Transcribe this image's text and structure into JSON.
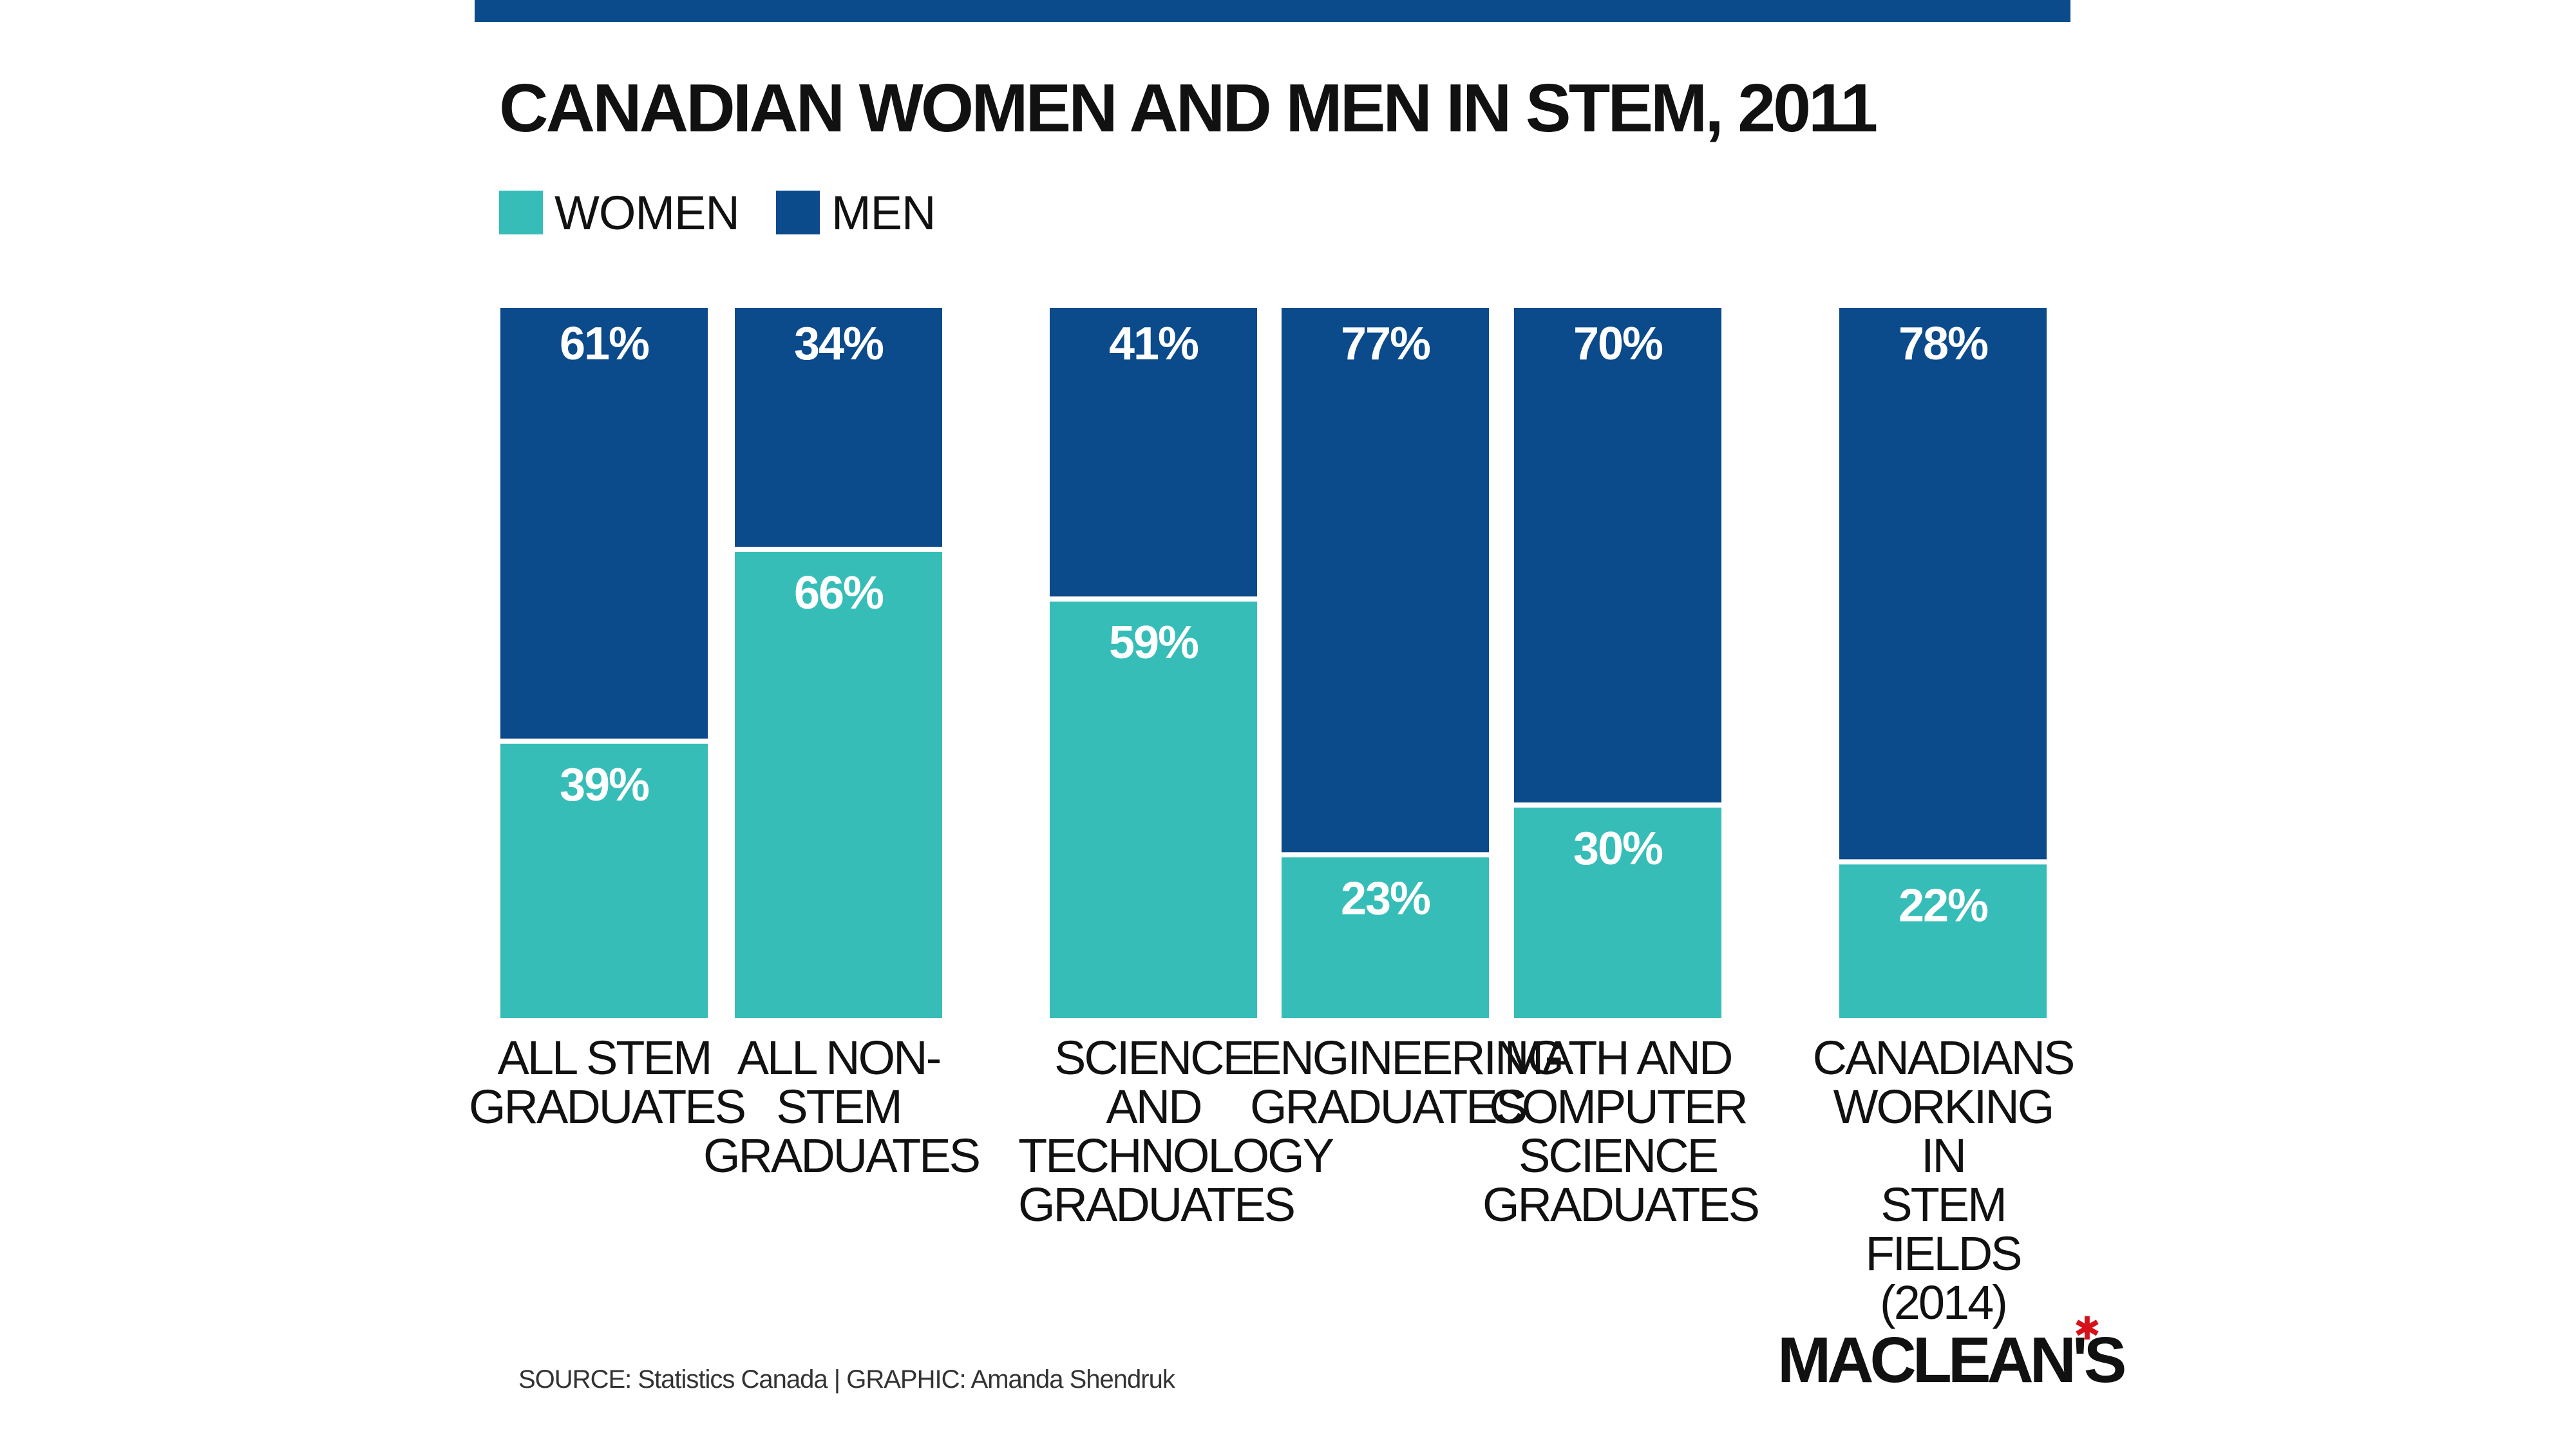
{
  "chart_data": {
    "type": "stacked-bar",
    "title": "CANADIAN WOMEN AND MEN IN STEM, 2011",
    "legend": [
      {
        "label": "WOMEN",
        "color": "#36bdb8"
      },
      {
        "label": "MEN",
        "color": "#0b4a8b"
      }
    ],
    "categories": [
      "ALL STEM\nGRADUATES",
      "ALL NON-STEM\nGRADUATES",
      "SCIENCE AND\nTECHNOLOGY\nGRADUATES",
      "ENGINEERING\nGRADUATES",
      "MATH AND\nCOMPUTER\nSCIENCE\nGRADUATES",
      "CANADIANS\nWORKING IN\nSTEM FIELDS\n(2014)"
    ],
    "series": [
      {
        "name": "WOMEN",
        "values": [
          39,
          66,
          59,
          23,
          30,
          22
        ],
        "labels": [
          "39%",
          "66%",
          "59%",
          "23%",
          "30%",
          "22%"
        ]
      },
      {
        "name": "MEN",
        "values": [
          61,
          34,
          41,
          77,
          70,
          78
        ],
        "labels": [
          "61%",
          "34%",
          "41%",
          "77%",
          "70%",
          "78%"
        ]
      }
    ],
    "ylim": [
      0,
      100
    ],
    "grid": false,
    "legend_position": "top-left"
  },
  "source": "SOURCE: Statistics Canada  |  GRAPHIC: Amanda Shendruk",
  "logo": {
    "text": "MACLEAN'S",
    "leaf_color": "#d7111a"
  },
  "colors": {
    "top_bar": "#0b4a8b",
    "women": "#36bdb8",
    "men": "#0b4a8b"
  }
}
